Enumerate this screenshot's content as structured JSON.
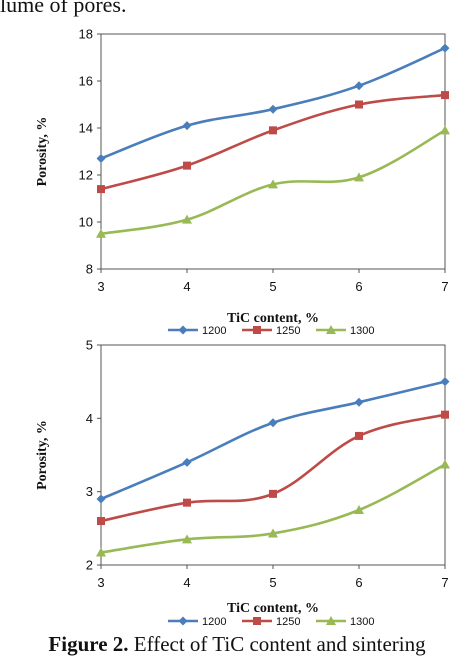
{
  "header_fragment": "lume of pores.",
  "caption": {
    "label": "Figure 2.",
    "text": " Effect of TiC content and sintering"
  },
  "chart_data": [
    {
      "type": "line",
      "x": [
        3,
        4,
        5,
        6,
        7
      ],
      "xlabel": "TiC content, %",
      "ylabel": "Porosity, %",
      "xlim": [
        3,
        7
      ],
      "ylim": [
        8,
        18
      ],
      "yticks": [
        8,
        10,
        12,
        14,
        16,
        18
      ],
      "grid": false,
      "legend_position": "bottom",
      "series": [
        {
          "name": "1200",
          "values": [
            12.7,
            14.1,
            14.8,
            15.8,
            17.4
          ],
          "color": "#4a7ebb",
          "marker": "diamond"
        },
        {
          "name": "1250",
          "values": [
            11.4,
            12.4,
            13.9,
            15.0,
            15.4
          ],
          "color": "#be4b48",
          "marker": "square"
        },
        {
          "name": "1300",
          "values": [
            9.5,
            10.1,
            11.6,
            11.9,
            13.9
          ],
          "color": "#98b954",
          "marker": "triangle"
        }
      ]
    },
    {
      "type": "line",
      "x": [
        3,
        4,
        5,
        6,
        7
      ],
      "xlabel": "TiC content, %",
      "ylabel": "Porosity, %",
      "xlim": [
        3,
        7
      ],
      "ylim": [
        2,
        5
      ],
      "yticks": [
        2,
        3,
        4,
        5
      ],
      "grid": false,
      "legend_position": "bottom",
      "series": [
        {
          "name": "1200",
          "values": [
            2.9,
            3.4,
            3.94,
            4.22,
            4.5
          ],
          "color": "#4a7ebb",
          "marker": "diamond"
        },
        {
          "name": "1250",
          "values": [
            2.6,
            2.85,
            2.97,
            3.76,
            4.05
          ],
          "color": "#be4b48",
          "marker": "square"
        },
        {
          "name": "1300",
          "values": [
            2.17,
            2.35,
            2.43,
            2.75,
            3.37
          ],
          "color": "#98b954",
          "marker": "triangle"
        }
      ]
    }
  ]
}
